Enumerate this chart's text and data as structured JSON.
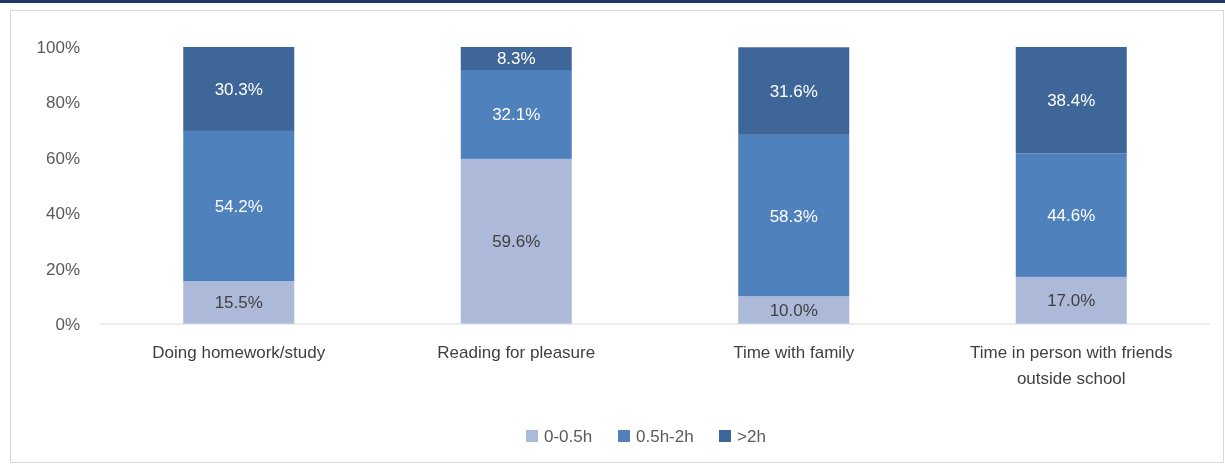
{
  "chart_data": {
    "type": "bar",
    "stacked": true,
    "categories": [
      "Doing homework/study",
      "Reading for pleasure",
      "Time with family",
      "Time in person with friends outside school"
    ],
    "series": [
      {
        "name": "0-0.5h",
        "color": "#adb9d8",
        "values": [
          15.5,
          59.6,
          10.0,
          17.0
        ],
        "value_labels": [
          "15.5%",
          "59.6%",
          "10.0%",
          "17.0%"
        ]
      },
      {
        "name": "0.5h-2h",
        "color": "#4f81bd",
        "values": [
          54.2,
          32.1,
          58.3,
          44.6
        ],
        "value_labels": [
          "54.2%",
          "32.1%",
          "58.3%",
          "44.6%"
        ]
      },
      {
        "name": ">2h",
        "color": "#3f6698",
        "values": [
          30.3,
          8.3,
          31.6,
          38.4
        ],
        "value_labels": [
          "30.3%",
          "8.3%",
          "31.6%",
          "38.4%"
        ]
      }
    ],
    "ylim": [
      0,
      100
    ],
    "yticks": [
      {
        "value": 0,
        "label": "0%"
      },
      {
        "value": 20,
        "label": "20%"
      },
      {
        "value": 40,
        "label": "40%"
      },
      {
        "value": 60,
        "label": "60%"
      },
      {
        "value": 80,
        "label": "80%"
      },
      {
        "value": 100,
        "label": "100%"
      }
    ],
    "legend": "bottom"
  }
}
